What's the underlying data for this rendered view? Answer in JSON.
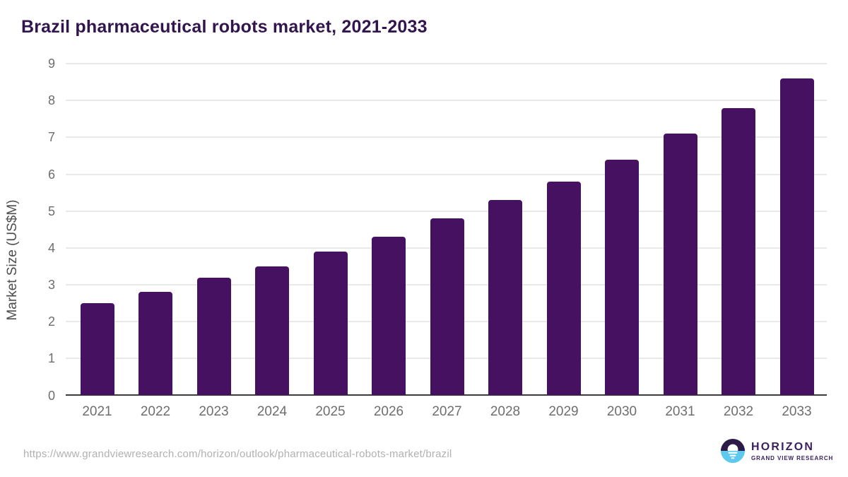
{
  "page": {
    "title": "Brazil pharmaceutical robots market, 2021-2033",
    "source_url": "https://www.grandviewresearch.com/horizon/outlook/pharmaceutical-robots-market/brazil"
  },
  "branding": {
    "logo_name": "HORIZON",
    "logo_subtitle": "GRAND VIEW RESEARCH"
  },
  "colors": {
    "bar": "#471162",
    "title": "#33154e",
    "tick_label": "#6e6e6e",
    "axis_title": "#4e4e4e",
    "gridline": "#e9e9e9",
    "axis_line": "#3b3b3b",
    "url_text": "#b1b1b1",
    "logo_purple": "#2e1a47",
    "logo_blue": "#5ec9ee",
    "logo_text": "#3b2063"
  },
  "chart_data": {
    "type": "bar",
    "title": "Brazil pharmaceutical robots market, 2021-2033",
    "categories": [
      "2021",
      "2022",
      "2023",
      "2024",
      "2025",
      "2026",
      "2027",
      "2028",
      "2029",
      "2030",
      "2031",
      "2032",
      "2033"
    ],
    "values": [
      2.5,
      2.8,
      3.2,
      3.5,
      3.9,
      4.3,
      4.8,
      5.3,
      5.8,
      6.4,
      7.1,
      7.8,
      8.6
    ],
    "xlabel": "",
    "ylabel": "Market Size (US$M)",
    "ylim": [
      0,
      9
    ],
    "ytick_interval": 1,
    "grid": true,
    "legend_position": "none"
  }
}
